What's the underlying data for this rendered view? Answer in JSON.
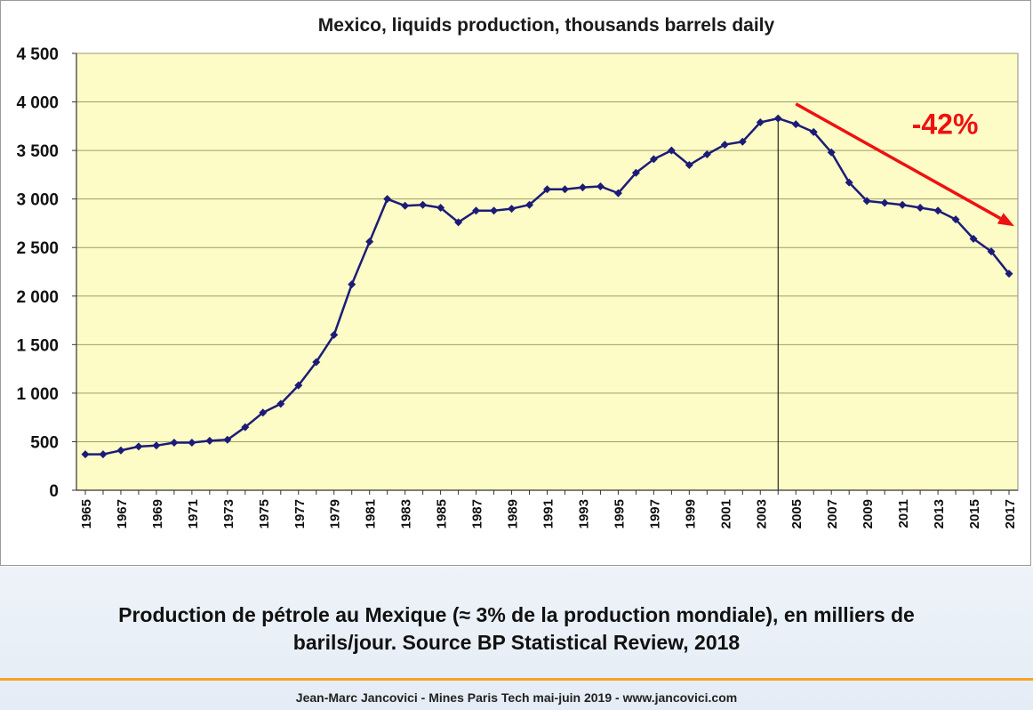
{
  "colors": {
    "plot_background": "#fdfbc6",
    "series_line": "#1c1c78",
    "gridline": "#9e9e6a",
    "trend_arrow": "#ee1111",
    "annotation_text": "#ee1111",
    "divider": "#f4a226",
    "caption_band": "#e8eef6"
  },
  "chart_data": {
    "type": "line",
    "title": "Mexico, liquids production, thousands barrels daily",
    "xlabel": "",
    "ylabel": "",
    "ylim": [
      0,
      4500
    ],
    "y_ticks": [
      {
        "value": 0,
        "label": "0"
      },
      {
        "value": 500,
        "label": "500"
      },
      {
        "value": 1000,
        "label": "1 000"
      },
      {
        "value": 1500,
        "label": "1 500"
      },
      {
        "value": 2000,
        "label": "2 000"
      },
      {
        "value": 2500,
        "label": "2 500"
      },
      {
        "value": 3000,
        "label": "3 000"
      },
      {
        "value": 3500,
        "label": "3 500"
      },
      {
        "value": 4000,
        "label": "4 000"
      },
      {
        "value": 4500,
        "label": "4 500"
      }
    ],
    "x_tick_labels": [
      "1965",
      "1967",
      "1969",
      "1971",
      "1973",
      "1975",
      "1977",
      "1979",
      "1981",
      "1983",
      "1985",
      "1987",
      "1989",
      "1991",
      "1993",
      "1995",
      "1997",
      "1999",
      "2001",
      "2003",
      "2005",
      "2007",
      "2009",
      "2011",
      "2013",
      "2015",
      "2017"
    ],
    "grid": "horizontal",
    "legend": "none",
    "x": [
      1965,
      1966,
      1967,
      1968,
      1969,
      1970,
      1971,
      1972,
      1973,
      1974,
      1975,
      1976,
      1977,
      1978,
      1979,
      1980,
      1981,
      1982,
      1983,
      1984,
      1985,
      1986,
      1987,
      1988,
      1989,
      1990,
      1991,
      1992,
      1993,
      1994,
      1995,
      1996,
      1997,
      1998,
      1999,
      2000,
      2001,
      2002,
      2003,
      2004,
      2005,
      2006,
      2007,
      2008,
      2009,
      2010,
      2011,
      2012,
      2013,
      2014,
      2015,
      2016,
      2017
    ],
    "series": [
      {
        "values": [
          370,
          370,
          410,
          450,
          460,
          490,
          490,
          510,
          520,
          650,
          800,
          890,
          1080,
          1320,
          1600,
          2120,
          2560,
          3000,
          2930,
          2940,
          2910,
          2760,
          2880,
          2880,
          2900,
          2940,
          3100,
          3100,
          3120,
          3130,
          3060,
          3270,
          3410,
          3500,
          3350,
          3460,
          3560,
          3590,
          3790,
          3830,
          3770,
          3690,
          3480,
          3170,
          2980,
          2960,
          2940,
          2910,
          2880,
          2790,
          2590,
          2460,
          2230
        ]
      }
    ],
    "annotations": [
      {
        "type": "vertical-line",
        "x": 2004
      },
      {
        "type": "arrow",
        "from": {
          "x": 2005,
          "y": 3980
        },
        "to": {
          "x": 2017.3,
          "y": 2720
        }
      },
      {
        "type": "text",
        "text": "-42%",
        "x": 2013.4,
        "y": 3670
      }
    ]
  },
  "caption": {
    "line1": "Production de pétrole au Mexique (≈ 3% de la production mondiale), en milliers de",
    "line2": "barils/jour. Source BP Statistical Review, 2018"
  },
  "footer": {
    "text": "Jean-Marc Jancovici - Mines Paris Tech mai-juin 2019 - www.jancovici.com"
  }
}
